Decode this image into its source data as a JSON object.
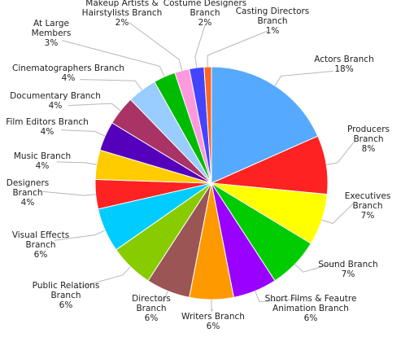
{
  "chart_data": {
    "type": "pie",
    "title": "",
    "start": "top, clockwise",
    "slices": [
      {
        "label": [
          "Actors Branch",
          "18%"
        ],
        "value": 18,
        "color": "#55aaff"
      },
      {
        "label": [
          "Producers",
          "Branch",
          "8%"
        ],
        "value": 8,
        "color": "#ff2222"
      },
      {
        "label": [
          "Executives",
          "Branch",
          "7%"
        ],
        "value": 7,
        "color": "#ffff00"
      },
      {
        "label": [
          "Sound Branch",
          "7%"
        ],
        "value": 7,
        "color": "#00cc00"
      },
      {
        "label": [
          "Short Films & Feautre",
          "Animation Branch",
          "6%"
        ],
        "value": 6,
        "color": "#9900ff"
      },
      {
        "label": [
          "Writers Branch",
          "6%"
        ],
        "value": 6,
        "color": "#ff9900"
      },
      {
        "label": [
          "Directors",
          "Branch",
          "6%"
        ],
        "value": 6,
        "color": "#9b5555"
      },
      {
        "label": [
          "Public Relations",
          "Branch",
          "6%"
        ],
        "value": 6,
        "color": "#88cc00"
      },
      {
        "label": [
          "Visual Effects",
          "Branch",
          "6%"
        ],
        "value": 6,
        "color": "#00ccff"
      },
      {
        "label": [
          "Designers",
          "Branch",
          "4%"
        ],
        "value": 4,
        "color": "#ff2222"
      },
      {
        "label": [
          "Music Branch",
          "4%"
        ],
        "value": 4,
        "color": "#ffcc00"
      },
      {
        "label": [
          "Film Editors Branch",
          "4%"
        ],
        "value": 4,
        "color": "#5500bb"
      },
      {
        "label": [
          "Documentary Branch",
          "4%"
        ],
        "value": 4,
        "color": "#aa3366"
      },
      {
        "label": [
          "Cinematographers Branch",
          "4%"
        ],
        "value": 4,
        "color": "#99ccff"
      },
      {
        "label": [
          "At Large",
          "Members",
          "3%"
        ],
        "value": 3,
        "color": "#00bb00"
      },
      {
        "label": [
          "Makeup Artists &",
          "Hairstylists Branch",
          "2%"
        ],
        "value": 2,
        "color": "#ff99dd"
      },
      {
        "label": [
          "Costume Designers",
          "Branch",
          "2%"
        ],
        "value": 2,
        "color": "#4444ff"
      },
      {
        "label": [
          "Casting Directors",
          "Branch",
          "1%"
        ],
        "value": 1,
        "color": "#ff6622"
      }
    ]
  }
}
